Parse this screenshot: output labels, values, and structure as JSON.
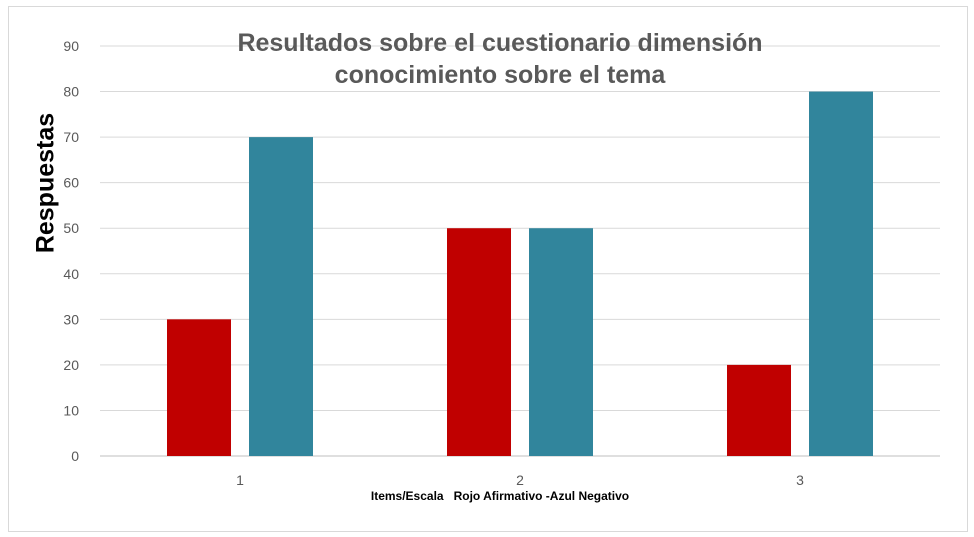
{
  "chart_data": {
    "type": "bar",
    "title": "Resultados sobre el cuestionario dimensión conocimiento sobre el tema",
    "title_lines": [
      "Resultados sobre el cuestionario dimensión",
      "conocimiento sobre el tema"
    ],
    "xlabel": "Items/Escala   Rojo Afirmativo -Azul Negativo",
    "ylabel": "Respuestas",
    "categories": [
      "1",
      "2",
      "3"
    ],
    "series": [
      {
        "values": [
          30,
          50,
          20
        ],
        "color": "#c00000"
      },
      {
        "values": [
          70,
          50,
          80
        ],
        "color": "#31859c"
      }
    ],
    "ylim": [
      0,
      90
    ],
    "yticks": [
      0,
      10,
      20,
      30,
      40,
      50,
      60,
      70,
      80,
      90
    ],
    "grid": true,
    "legend": "none"
  }
}
